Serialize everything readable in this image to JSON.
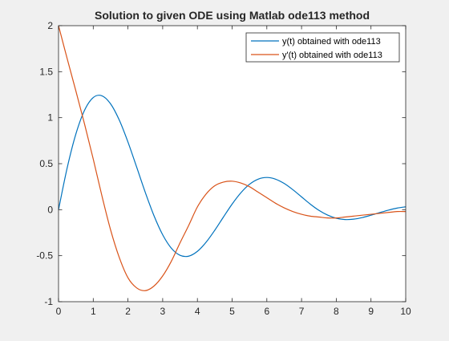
{
  "chart_data": {
    "type": "line",
    "title": "Solution to given ODE using Matlab ode113 method",
    "xlabel": "",
    "ylabel": "",
    "xlim": [
      0,
      10
    ],
    "ylim": [
      -1,
      2
    ],
    "xticks": [
      0,
      1,
      2,
      3,
      4,
      5,
      6,
      7,
      8,
      9,
      10
    ],
    "yticks": [
      -1,
      -0.5,
      0,
      0.5,
      1,
      1.5,
      2
    ],
    "xtick_labels": [
      "0",
      "1",
      "2",
      "3",
      "4",
      "5",
      "6",
      "7",
      "8",
      "9",
      "10"
    ],
    "ytick_labels": [
      "-1",
      "-0.5",
      "0",
      "0.5",
      "1",
      "1.5",
      "2"
    ],
    "grid": false,
    "legend_position": "top-right",
    "x": [
      0,
      0.25,
      0.5,
      0.75,
      1,
      1.25,
      1.5,
      1.75,
      2,
      2.25,
      2.5,
      2.75,
      3,
      3.25,
      3.5,
      3.75,
      4,
      4.25,
      4.5,
      4.75,
      5,
      5.25,
      5.5,
      5.75,
      6,
      6.25,
      6.5,
      6.75,
      7,
      7.25,
      7.5,
      7.75,
      8,
      8.25,
      8.5,
      8.75,
      9,
      9.25,
      9.5,
      9.75,
      10
    ],
    "series": [
      {
        "name": "y(t) obtained with ode113",
        "color": "#0072BD",
        "values": [
          0,
          0.456,
          0.823,
          1.081,
          1.219,
          1.238,
          1.15,
          0.974,
          0.735,
          0.463,
          0.187,
          -0.066,
          -0.273,
          -0.419,
          -0.496,
          -0.505,
          -0.453,
          -0.354,
          -0.224,
          -0.08,
          0.061,
          0.183,
          0.276,
          0.332,
          0.35,
          0.332,
          0.285,
          0.217,
          0.139,
          0.061,
          -0.007,
          -0.059,
          -0.093,
          -0.107,
          -0.103,
          -0.086,
          -0.06,
          -0.032,
          -0.005,
          0.017,
          0.031
        ]
      },
      {
        "name": "y'(t) obtained with ode113",
        "color": "#D95319",
        "values": [
          2,
          1.64,
          1.29,
          0.93,
          0.55,
          0.15,
          -0.22,
          -0.52,
          -0.74,
          -0.85,
          -0.88,
          -0.83,
          -0.72,
          -0.56,
          -0.36,
          -0.17,
          0.03,
          0.17,
          0.26,
          0.3,
          0.31,
          0.29,
          0.25,
          0.19,
          0.13,
          0.07,
          0.02,
          -0.02,
          -0.05,
          -0.07,
          -0.08,
          -0.09,
          -0.09,
          -0.08,
          -0.07,
          -0.06,
          -0.05,
          -0.04,
          -0.03,
          -0.02,
          -0.02
        ]
      }
    ]
  }
}
